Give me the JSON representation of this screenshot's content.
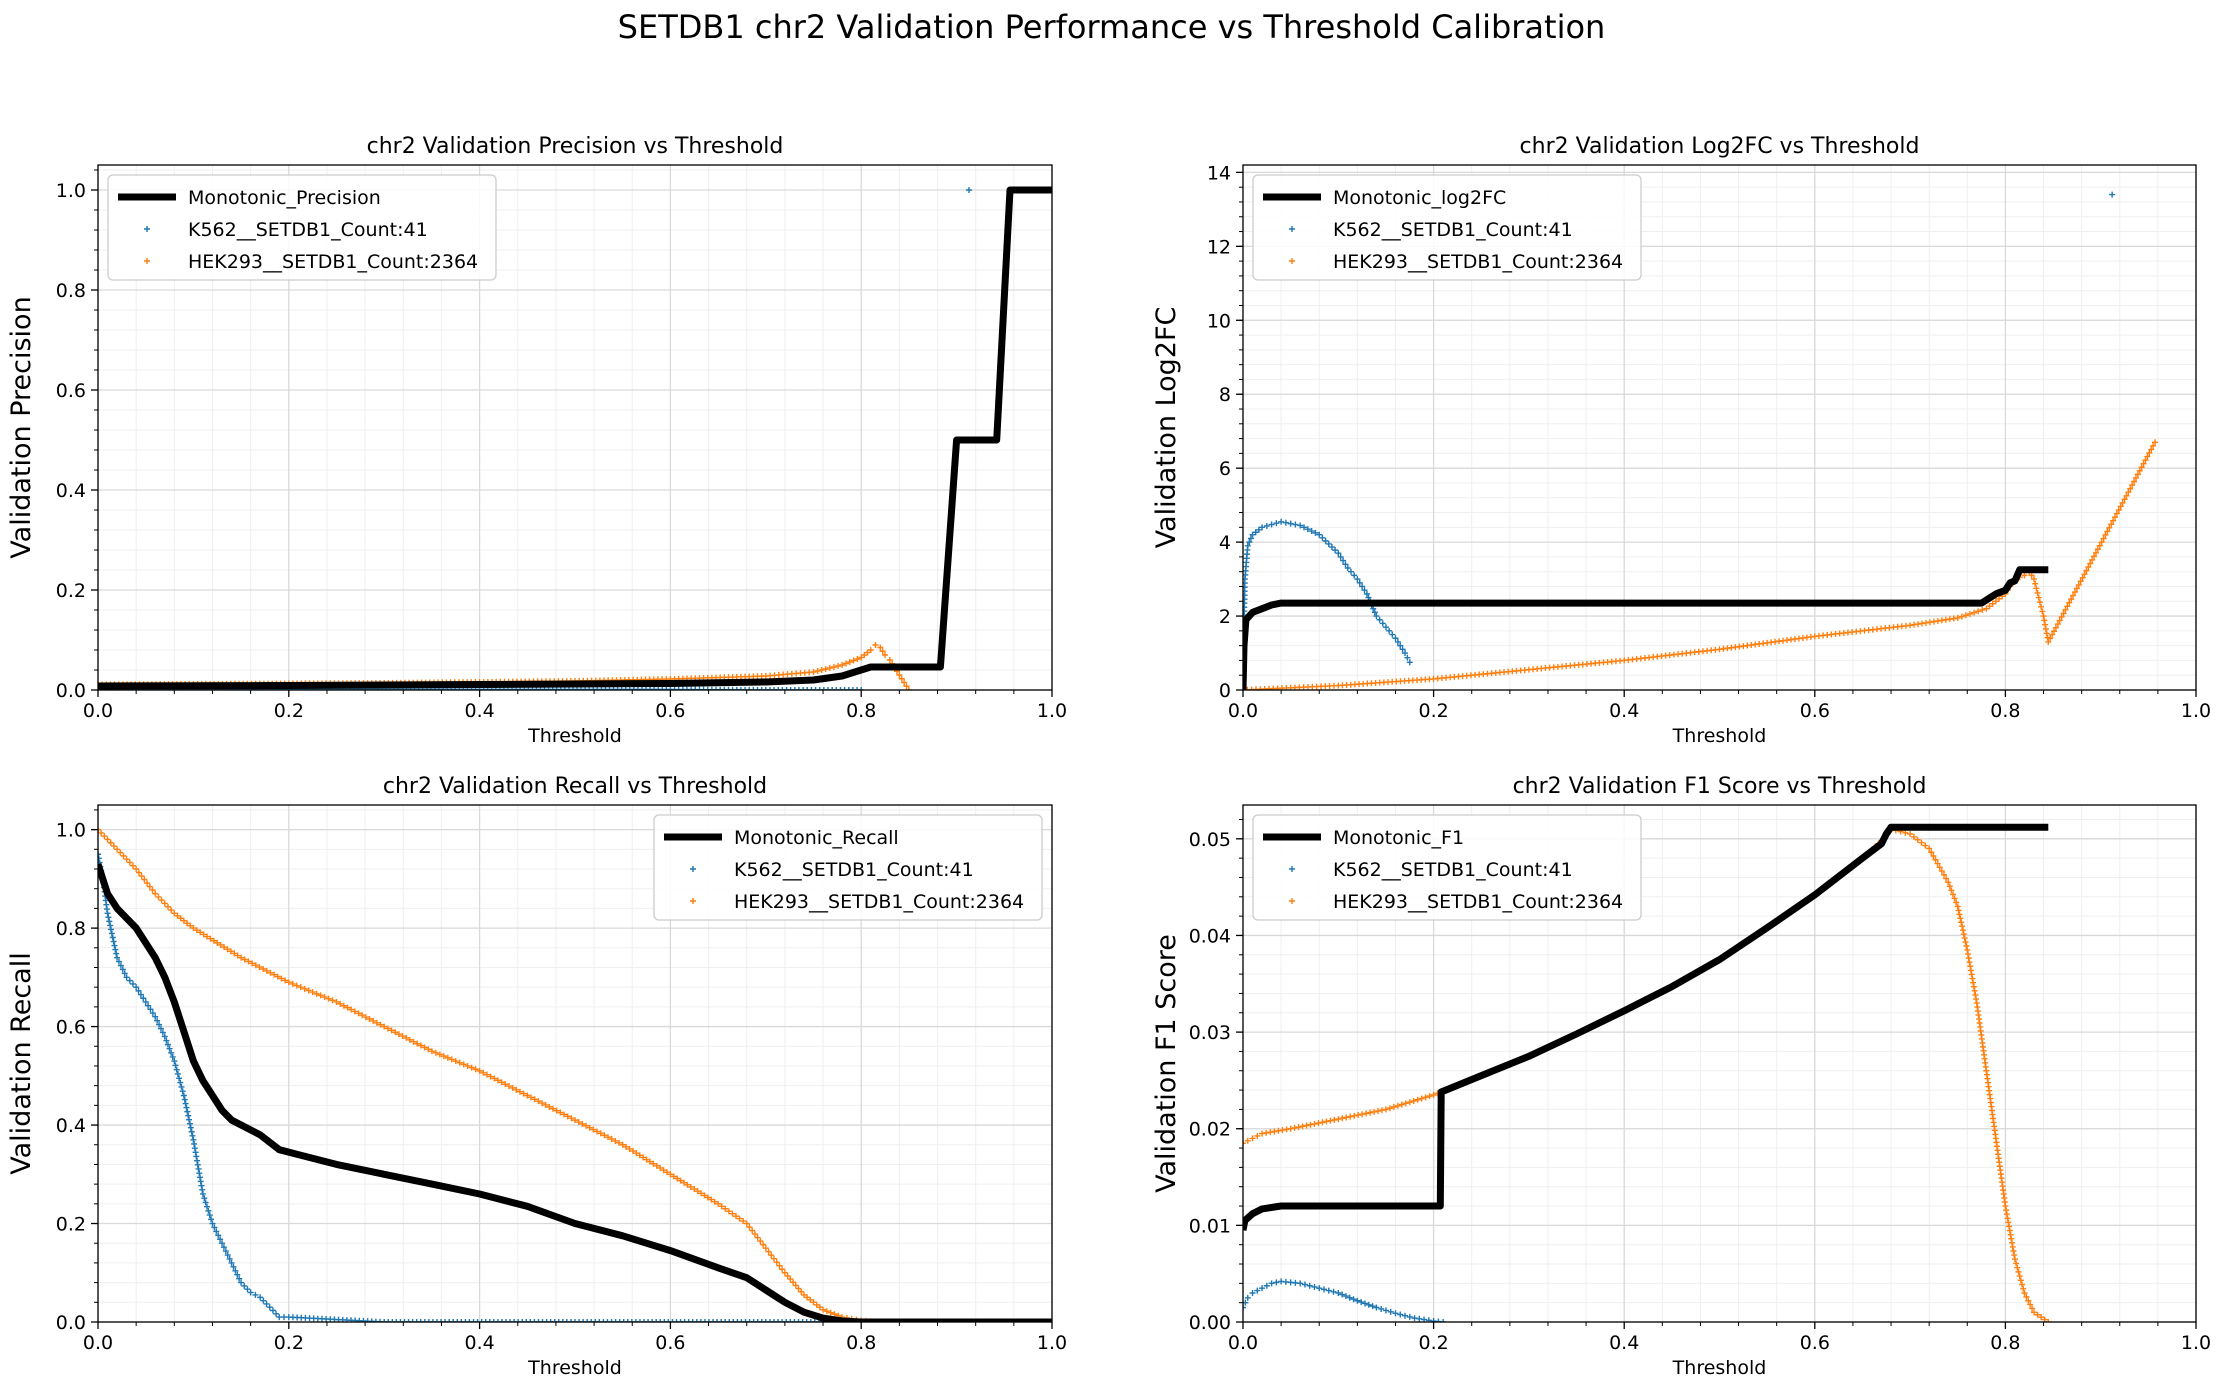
{
  "figure": {
    "suptitle": "SETDB1 chr2 Validation Performance vs Threshold Calibration"
  },
  "colors": {
    "monotonic": "#000000",
    "k562": "#1f77b4",
    "hek293": "#ff7f0e",
    "grid": "#d9d9d9"
  },
  "chart_data": [
    {
      "type": "line",
      "title": "chr2 Validation Precision vs Threshold",
      "xlabel": "Threshold",
      "ylabel": "Validation Precision",
      "xlim": [
        0,
        1
      ],
      "ylim": [
        0,
        1.05
      ],
      "xticks": [
        0.0,
        0.2,
        0.4,
        0.6,
        0.8,
        1.0
      ],
      "yticks": [
        0.0,
        0.2,
        0.4,
        0.6,
        0.8,
        1.0
      ],
      "grid": true,
      "legend_position": "upper-left",
      "series": [
        {
          "name": "Monotonic_Precision",
          "style": "line",
          "color": "#000000",
          "x": [
            0,
            0.2,
            0.4,
            0.5,
            0.6,
            0.7,
            0.75,
            0.78,
            0.8,
            0.81,
            0.883,
            0.9,
            0.912,
            0.942,
            0.956,
            1.0
          ],
          "y": [
            0.008,
            0.009,
            0.011,
            0.012,
            0.013,
            0.016,
            0.02,
            0.028,
            0.04,
            0.046,
            0.046,
            0.5,
            0.5,
            0.5,
            1.0,
            1.0
          ]
        },
        {
          "name": "K562__SETDB1_Count:41",
          "style": "markers",
          "color": "#1f77b4",
          "x": [
            0,
            0.2,
            0.4,
            0.6,
            0.7,
            0.8,
            0.913
          ],
          "y": [
            0.001,
            0.001,
            0.001,
            0.001,
            0.0,
            0.0,
            1.0
          ]
        },
        {
          "name": "HEK293__SETDB1_Count:2364",
          "style": "markers",
          "color": "#ff7f0e",
          "x": [
            0,
            0.1,
            0.2,
            0.3,
            0.4,
            0.5,
            0.6,
            0.7,
            0.75,
            0.78,
            0.8,
            0.81,
            0.815,
            0.82,
            0.825,
            0.83,
            0.84,
            0.85
          ],
          "y": [
            0.011,
            0.012,
            0.013,
            0.014,
            0.016,
            0.018,
            0.022,
            0.028,
            0.036,
            0.05,
            0.065,
            0.08,
            0.09,
            0.085,
            0.07,
            0.06,
            0.03,
            0.0
          ]
        }
      ]
    },
    {
      "type": "line",
      "title": "chr2 Validation Log2FC vs Threshold",
      "xlabel": "Threshold",
      "ylabel": "Validation Log2FC",
      "xlim": [
        0,
        1
      ],
      "ylim": [
        0,
        14.2
      ],
      "xticks": [
        0.0,
        0.2,
        0.4,
        0.6,
        0.8,
        1.0
      ],
      "yticks": [
        0,
        2,
        4,
        6,
        8,
        10,
        12,
        14
      ],
      "grid": true,
      "legend_position": "upper-left",
      "series": [
        {
          "name": "Monotonic_log2FC",
          "style": "line",
          "color": "#000000",
          "x": [
            0,
            0.001,
            0.003,
            0.01,
            0.02,
            0.03,
            0.04,
            0.1,
            0.4,
            0.6,
            0.775,
            0.79,
            0.8,
            0.805,
            0.81,
            0.815,
            0.82,
            0.845
          ],
          "y": [
            0,
            1.2,
            1.9,
            2.1,
            2.2,
            2.3,
            2.35,
            2.35,
            2.35,
            2.35,
            2.35,
            2.6,
            2.7,
            2.9,
            2.95,
            3.25,
            3.25,
            3.25
          ]
        },
        {
          "name": "K562__SETDB1_Count:41",
          "style": "markers",
          "color": "#1f77b4",
          "x": [
            0,
            0.002,
            0.005,
            0.01,
            0.02,
            0.04,
            0.06,
            0.08,
            0.1,
            0.11,
            0.12,
            0.13,
            0.14,
            0.15,
            0.16,
            0.17,
            0.175,
            0.912
          ],
          "y": [
            0.5,
            3.0,
            3.9,
            4.2,
            4.4,
            4.55,
            4.45,
            4.2,
            3.7,
            3.3,
            3.0,
            2.6,
            2.0,
            1.7,
            1.4,
            1.0,
            0.75,
            13.4
          ]
        },
        {
          "name": "HEK293__SETDB1_Count:2364",
          "style": "markers",
          "color": "#ff7f0e",
          "x": [
            0,
            0.05,
            0.1,
            0.2,
            0.3,
            0.4,
            0.5,
            0.6,
            0.7,
            0.75,
            0.78,
            0.8,
            0.81,
            0.82,
            0.825,
            0.83,
            0.835,
            0.84,
            0.845,
            0.957
          ],
          "y": [
            0.0,
            0.06,
            0.12,
            0.3,
            0.55,
            0.8,
            1.1,
            1.45,
            1.75,
            1.95,
            2.2,
            2.6,
            3.0,
            3.1,
            3.2,
            3.0,
            2.5,
            2.0,
            1.3,
            6.7
          ]
        }
      ]
    },
    {
      "type": "line",
      "title": "chr2 Validation Recall vs Threshold",
      "xlabel": "Threshold",
      "ylabel": "Validation Recall",
      "xlim": [
        0,
        1
      ],
      "ylim": [
        0,
        1.05
      ],
      "xticks": [
        0.0,
        0.2,
        0.4,
        0.6,
        0.8,
        1.0
      ],
      "yticks": [
        0.0,
        0.2,
        0.4,
        0.6,
        0.8,
        1.0
      ],
      "grid": true,
      "legend_position": "upper-right",
      "series": [
        {
          "name": "Monotonic_Recall",
          "style": "line",
          "color": "#000000",
          "x": [
            0,
            0.01,
            0.02,
            0.03,
            0.04,
            0.05,
            0.06,
            0.07,
            0.08,
            0.09,
            0.1,
            0.11,
            0.12,
            0.13,
            0.14,
            0.15,
            0.17,
            0.19,
            0.21,
            0.25,
            0.3,
            0.35,
            0.4,
            0.45,
            0.5,
            0.55,
            0.6,
            0.65,
            0.68,
            0.7,
            0.72,
            0.74,
            0.76,
            0.78,
            0.8,
            1.0
          ],
          "y": [
            0.93,
            0.87,
            0.84,
            0.82,
            0.8,
            0.77,
            0.74,
            0.7,
            0.65,
            0.59,
            0.53,
            0.49,
            0.46,
            0.43,
            0.41,
            0.4,
            0.38,
            0.35,
            0.34,
            0.32,
            0.3,
            0.28,
            0.26,
            0.235,
            0.2,
            0.175,
            0.145,
            0.11,
            0.09,
            0.065,
            0.04,
            0.02,
            0.008,
            0.002,
            0.0,
            0.0
          ]
        },
        {
          "name": "K562__SETDB1_Count:41",
          "style": "markers",
          "color": "#1f77b4",
          "x": [
            0,
            0.005,
            0.01,
            0.02,
            0.03,
            0.04,
            0.05,
            0.06,
            0.07,
            0.08,
            0.09,
            0.1,
            0.11,
            0.12,
            0.13,
            0.14,
            0.15,
            0.16,
            0.17,
            0.18,
            0.19,
            0.2,
            0.3,
            0.5,
            0.7,
            0.85,
            1.0
          ],
          "y": [
            0.95,
            0.9,
            0.83,
            0.74,
            0.7,
            0.68,
            0.65,
            0.62,
            0.58,
            0.53,
            0.46,
            0.37,
            0.26,
            0.2,
            0.16,
            0.12,
            0.08,
            0.06,
            0.05,
            0.03,
            0.01,
            0.01,
            0.0,
            0.0,
            0.0,
            0.0,
            0.0
          ]
        },
        {
          "name": "HEK293__SETDB1_Count:2364",
          "style": "markers",
          "color": "#ff7f0e",
          "x": [
            0,
            0.01,
            0.02,
            0.04,
            0.06,
            0.08,
            0.1,
            0.15,
            0.2,
            0.25,
            0.3,
            0.35,
            0.4,
            0.45,
            0.5,
            0.55,
            0.6,
            0.65,
            0.68,
            0.7,
            0.72,
            0.74,
            0.76,
            0.78,
            0.8,
            0.82
          ],
          "y": [
            1.0,
            0.98,
            0.96,
            0.92,
            0.87,
            0.83,
            0.8,
            0.74,
            0.69,
            0.65,
            0.6,
            0.55,
            0.51,
            0.46,
            0.41,
            0.36,
            0.3,
            0.24,
            0.2,
            0.15,
            0.1,
            0.055,
            0.025,
            0.01,
            0.003,
            0.0
          ]
        }
      ]
    },
    {
      "type": "line",
      "title": "chr2 Validation F1 Score vs Threshold",
      "xlabel": "Threshold",
      "ylabel": "Validation F1 Score",
      "xlim": [
        0,
        1
      ],
      "ylim": [
        0,
        0.0535
      ],
      "xticks": [
        0.0,
        0.2,
        0.4,
        0.6,
        0.8,
        1.0
      ],
      "yticks": [
        0.0,
        0.01,
        0.02,
        0.03,
        0.04,
        0.05
      ],
      "grid": true,
      "legend_position": "upper-left",
      "series": [
        {
          "name": "Monotonic_F1",
          "style": "line",
          "color": "#000000",
          "x": [
            0,
            0.002,
            0.01,
            0.02,
            0.04,
            0.1,
            0.15,
            0.207,
            0.208,
            0.25,
            0.3,
            0.35,
            0.4,
            0.45,
            0.5,
            0.55,
            0.6,
            0.65,
            0.67,
            0.675,
            0.68,
            0.7,
            0.8,
            0.845
          ],
          "y": [
            0.0095,
            0.0105,
            0.0112,
            0.0117,
            0.012,
            0.012,
            0.012,
            0.012,
            0.0238,
            0.0255,
            0.0275,
            0.0298,
            0.0322,
            0.0347,
            0.0375,
            0.0408,
            0.0442,
            0.048,
            0.0495,
            0.0505,
            0.0512,
            0.0512,
            0.0512,
            0.0512
          ]
        },
        {
          "name": "K562__SETDB1_Count:41",
          "style": "markers",
          "color": "#1f77b4",
          "x": [
            0,
            0.005,
            0.01,
            0.02,
            0.03,
            0.04,
            0.05,
            0.06,
            0.08,
            0.1,
            0.12,
            0.14,
            0.16,
            0.18,
            0.2,
            0.21
          ],
          "y": [
            0.0015,
            0.0025,
            0.003,
            0.0035,
            0.004,
            0.0042,
            0.0041,
            0.004,
            0.0035,
            0.003,
            0.0022,
            0.0015,
            0.0009,
            0.0004,
            0.0001,
            0.0
          ]
        },
        {
          "name": "HEK293__SETDB1_Count:2364",
          "style": "markers",
          "color": "#ff7f0e",
          "x": [
            0,
            0.01,
            0.02,
            0.05,
            0.1,
            0.15,
            0.2,
            0.25,
            0.3,
            0.35,
            0.4,
            0.45,
            0.5,
            0.55,
            0.6,
            0.65,
            0.67,
            0.68,
            0.7,
            0.72,
            0.74,
            0.75,
            0.76,
            0.77,
            0.78,
            0.79,
            0.8,
            0.81,
            0.82,
            0.83,
            0.845
          ],
          "y": [
            0.0185,
            0.019,
            0.0195,
            0.02,
            0.021,
            0.022,
            0.0235,
            0.0255,
            0.0275,
            0.0298,
            0.0322,
            0.0347,
            0.0375,
            0.0408,
            0.0442,
            0.048,
            0.0498,
            0.051,
            0.0505,
            0.049,
            0.0455,
            0.043,
            0.0385,
            0.033,
            0.026,
            0.019,
            0.012,
            0.0065,
            0.003,
            0.001,
            0.0
          ]
        }
      ]
    }
  ]
}
